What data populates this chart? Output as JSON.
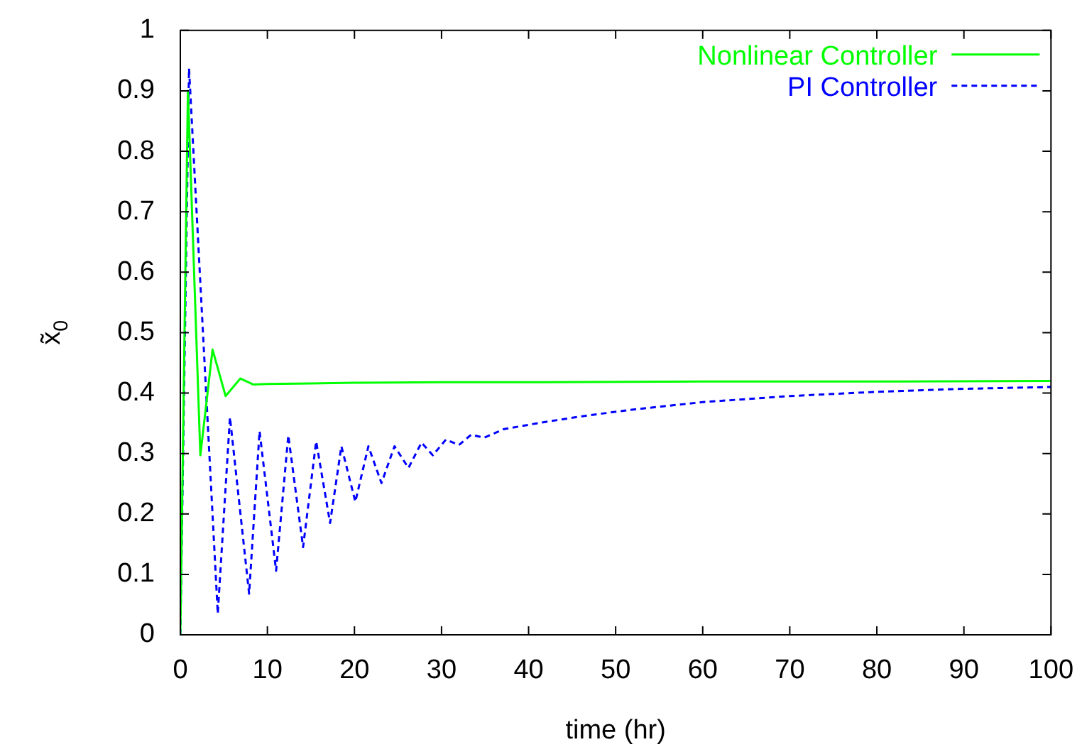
{
  "chart_data": {
    "type": "line",
    "xlabel": "time (hr)",
    "ylabel": "x̃$_{0}$",
    "xlim": [
      0,
      100
    ],
    "ylim": [
      0,
      1
    ],
    "xticks": [
      0,
      10,
      20,
      30,
      40,
      50,
      60,
      70,
      80,
      90,
      100
    ],
    "yticks": [
      0,
      0.1,
      0.2,
      0.3,
      0.4,
      0.5,
      0.6,
      0.7,
      0.8,
      0.9,
      1
    ],
    "grid": false,
    "legend": "top right",
    "marker": "none",
    "series": [
      {
        "name": "Nonlinear Controller",
        "color": "#00ff00",
        "line_style": "solid",
        "x": [
          0,
          0.87,
          2.3,
          3.7,
          5.2,
          6.9,
          8.4,
          10,
          15,
          20,
          30,
          40,
          60,
          80,
          100
        ],
        "values": [
          0,
          0.9,
          0.297,
          0.472,
          0.395,
          0.424,
          0.414,
          0.415,
          0.416,
          0.417,
          0.418,
          0.418,
          0.419,
          0.419,
          0.42
        ]
      },
      {
        "name": "PI Controller",
        "color": "#0000ff",
        "line_style": "dashed",
        "x": [
          0,
          1.0,
          4.3,
          5.7,
          7.9,
          9.1,
          11.0,
          12.4,
          14.1,
          15.6,
          17.2,
          18.5,
          20.1,
          21.6,
          23.1,
          24.6,
          26.2,
          27.7,
          29.0,
          30.5,
          32.0,
          33.4,
          34.9,
          37.1,
          41.4,
          46.8,
          52.2,
          60,
          70,
          80,
          90,
          100
        ],
        "values": [
          0,
          0.937,
          0.035,
          0.36,
          0.068,
          0.337,
          0.106,
          0.33,
          0.145,
          0.32,
          0.185,
          0.312,
          0.22,
          0.312,
          0.251,
          0.312,
          0.276,
          0.318,
          0.297,
          0.323,
          0.314,
          0.331,
          0.326,
          0.34,
          0.351,
          0.363,
          0.373,
          0.385,
          0.395,
          0.402,
          0.407,
          0.41
        ]
      }
    ]
  }
}
